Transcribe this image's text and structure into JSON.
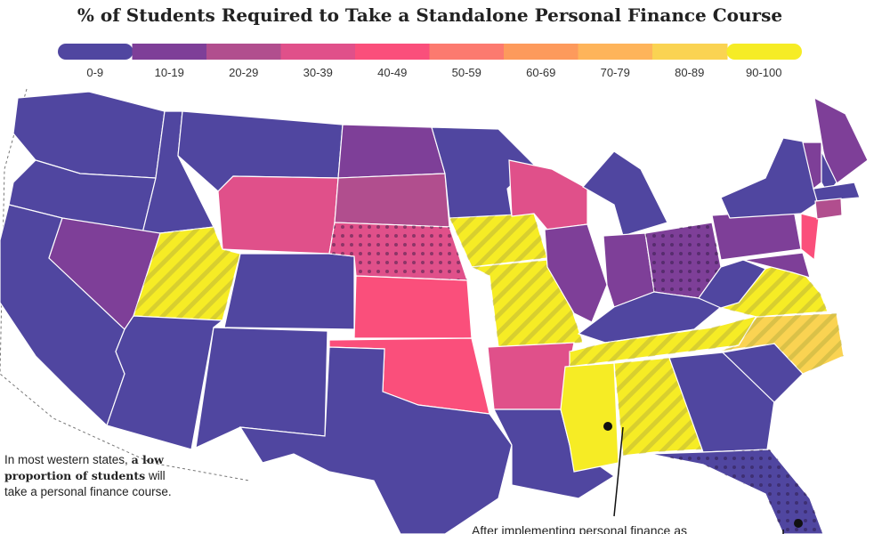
{
  "title": "% of Students Required to Take a Standalone Personal Finance Course",
  "legend": [
    {
      "label": "0-9",
      "color": "#5046a0"
    },
    {
      "label": "10-19",
      "color": "#7e3f98"
    },
    {
      "label": "20-29",
      "color": "#b14e8e"
    },
    {
      "label": "30-39",
      "color": "#e0508a"
    },
    {
      "label": "40-49",
      "color": "#fa4f7b"
    },
    {
      "label": "50-59",
      "color": "#fc7a6f"
    },
    {
      "label": "60-69",
      "color": "#fd9a5c"
    },
    {
      "label": "70-79",
      "color": "#feb45a"
    },
    {
      "label": "80-89",
      "color": "#fad352"
    },
    {
      "label": "90-100",
      "color": "#f6ec25"
    }
  ],
  "map": {
    "regions": [
      {
        "bin": 0
      },
      {
        "bin": 0
      },
      {
        "bin": 0
      },
      {
        "bin": 0
      },
      {
        "bin": 1
      },
      {
        "bin": 0
      },
      {
        "bin": 3
      },
      {
        "bin": 9,
        "pattern": "hatch"
      },
      {
        "bin": 0
      },
      {
        "bin": 0
      },
      {
        "bin": 0
      },
      {
        "bin": 1
      },
      {
        "bin": 2
      },
      {
        "bin": 3,
        "pattern": "dots"
      },
      {
        "bin": 4
      },
      {
        "bin": 4
      },
      {
        "bin": 0
      },
      {
        "bin": 0
      },
      {
        "bin": 9,
        "pattern": "hatch"
      },
      {
        "bin": 9,
        "pattern": "hatch"
      },
      {
        "bin": 3
      },
      {
        "bin": 0
      },
      {
        "bin": 3
      },
      {
        "bin": 1
      },
      {
        "bin": 0
      },
      {
        "bin": 1
      },
      {
        "bin": 1,
        "pattern": "dots"
      },
      {
        "bin": 0
      },
      {
        "bin": 9,
        "pattern": "hatch"
      },
      {
        "bin": 9
      },
      {
        "bin": 9,
        "pattern": "hatch"
      },
      {
        "bin": 0
      },
      {
        "bin": 0,
        "pattern": "dots"
      },
      {
        "bin": 0
      },
      {
        "bin": 8,
        "pattern": "hatch"
      },
      {
        "bin": 9,
        "pattern": "hatch"
      },
      {
        "bin": 0
      },
      {
        "bin": 1
      },
      {
        "bin": 0
      },
      {
        "bin": 4
      },
      {
        "bin": 1
      },
      {
        "bin": 1
      },
      {
        "bin": 1
      },
      {
        "bin": 0
      },
      {
        "bin": 0
      },
      {
        "bin": 2
      }
    ]
  },
  "annotations": [
    {
      "text": [
        "In most western states, ",
        "a low proportion of students",
        " will take a personal finance course."
      ]
    },
    {
      "text": "After implementing personal finance as"
    }
  ]
}
